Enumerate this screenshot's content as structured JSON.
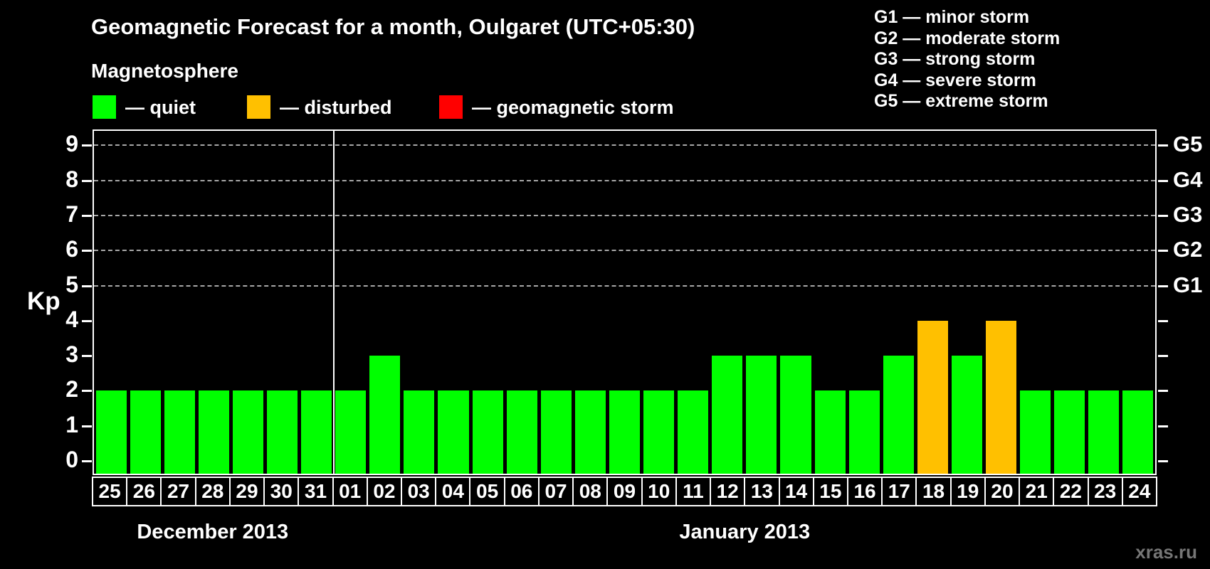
{
  "header": {
    "title": "Geomagnetic Forecast for a month, Oulgaret (UTC+05:30)",
    "subtitle": "Magnetosphere"
  },
  "legend": [
    {
      "key": "quiet",
      "label": "— quiet",
      "color": "#00ff00"
    },
    {
      "key": "disturbed",
      "label": "— disturbed",
      "color": "#ffc000"
    },
    {
      "key": "storm",
      "label": "— geomagnetic storm",
      "color": "#ff0000"
    }
  ],
  "g_scale_legend": [
    "G1 — minor storm",
    "G2 — moderate storm",
    "G3 — strong storm",
    "G4 — severe storm",
    "G5 — extreme storm"
  ],
  "watermark": "xras.ru",
  "chart_data": {
    "type": "bar",
    "title": "Geomagnetic Forecast for a month, Oulgaret (UTC+05:30)",
    "ylabel": "Kp",
    "ylim": [
      0,
      9
    ],
    "y_ticks": [
      0,
      1,
      2,
      3,
      4,
      5,
      6,
      7,
      8,
      9
    ],
    "gridline_levels": [
      5,
      6,
      7,
      8,
      9
    ],
    "right_axis_labels": [
      {
        "kp": 5,
        "label": "G1"
      },
      {
        "kp": 6,
        "label": "G2"
      },
      {
        "kp": 7,
        "label": "G3"
      },
      {
        "kp": 8,
        "label": "G4"
      },
      {
        "kp": 9,
        "label": "G5"
      }
    ],
    "months": [
      {
        "label": "December 2013",
        "days": 7
      },
      {
        "label": "January 2013",
        "days": 24
      }
    ],
    "categories": [
      "25",
      "26",
      "27",
      "28",
      "29",
      "30",
      "31",
      "01",
      "02",
      "03",
      "04",
      "05",
      "06",
      "07",
      "08",
      "09",
      "10",
      "11",
      "12",
      "13",
      "14",
      "15",
      "16",
      "17",
      "18",
      "19",
      "20",
      "21",
      "22",
      "23",
      "24"
    ],
    "values": [
      2,
      2,
      2,
      2,
      2,
      2,
      2,
      2,
      3,
      2,
      2,
      2,
      2,
      2,
      2,
      2,
      2,
      2,
      3,
      3,
      3,
      2,
      2,
      3,
      4,
      3,
      4,
      2,
      2,
      2,
      2
    ],
    "statuses": [
      "quiet",
      "quiet",
      "quiet",
      "quiet",
      "quiet",
      "quiet",
      "quiet",
      "quiet",
      "quiet",
      "quiet",
      "quiet",
      "quiet",
      "quiet",
      "quiet",
      "quiet",
      "quiet",
      "quiet",
      "quiet",
      "quiet",
      "quiet",
      "quiet",
      "quiet",
      "quiet",
      "quiet",
      "disturbed",
      "quiet",
      "disturbed",
      "quiet",
      "quiet",
      "quiet",
      "quiet"
    ]
  }
}
